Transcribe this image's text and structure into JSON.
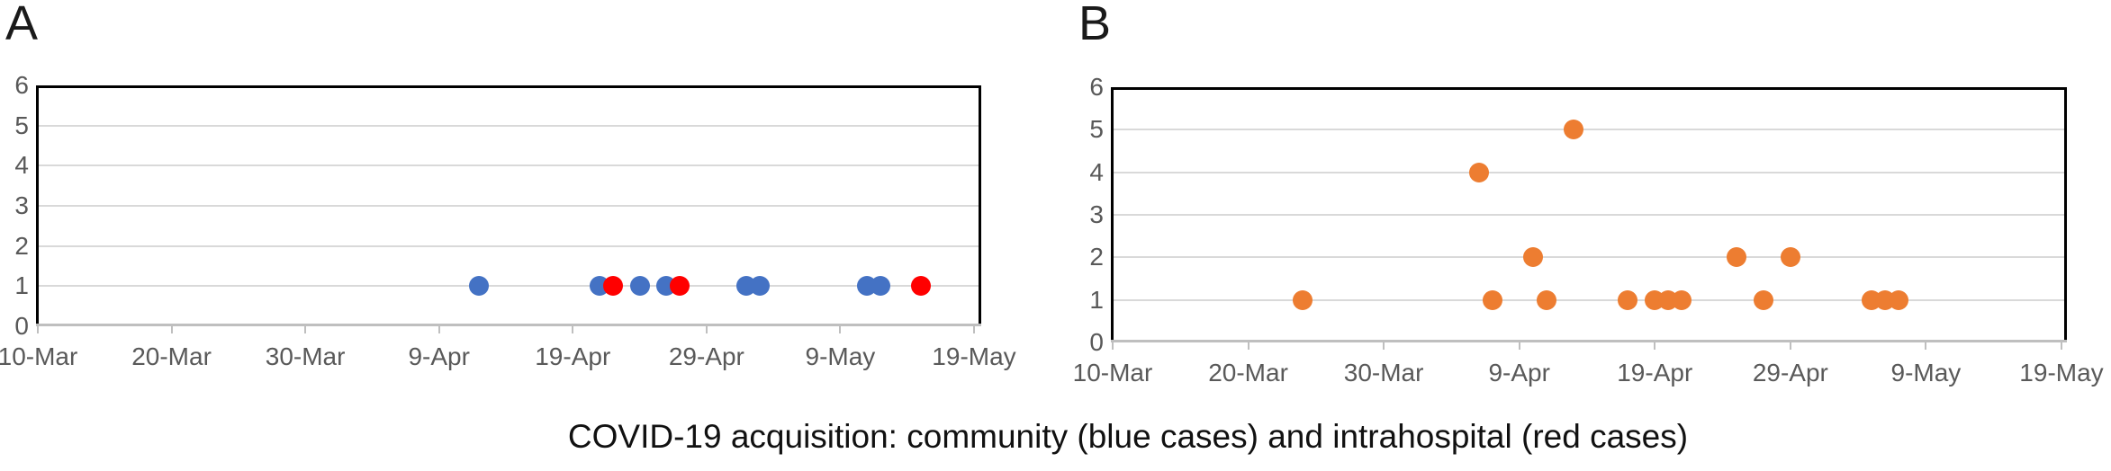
{
  "figure": {
    "caption": "COVID-19 acquisition: community (blue cases) and intrahospital (red cases)"
  },
  "panels": [
    {
      "label": "A"
    },
    {
      "label": "B"
    }
  ],
  "colors": {
    "community_blue": "#4472C4",
    "intrahospital_red": "#FF0000",
    "panel_b_orange": "#ED7D31",
    "gridline": "#D9D9D9",
    "axis_line": "#BFBFBF",
    "plot_border": "#000000",
    "tick_label": "#595959",
    "caption_text": "#111111"
  },
  "chart_data": [
    {
      "type": "scatter",
      "panel": "A",
      "title": "",
      "xlabel": "",
      "ylabel": "",
      "grid": true,
      "legend": "none",
      "x_axis": {
        "tick_labels": [
          "10-Mar",
          "20-Mar",
          "30-Mar",
          "9-Apr",
          "19-Apr",
          "29-Apr",
          "9-May",
          "19-May"
        ],
        "tick_interval_days": 10,
        "range": [
          "10-Mar",
          "19-May"
        ]
      },
      "y_axis": {
        "tick_labels": [
          "0",
          "1",
          "2",
          "3",
          "4",
          "5",
          "6"
        ],
        "min": 0,
        "max": 6
      },
      "series": [
        {
          "name": "community (blue cases)",
          "color": "#4472C4",
          "points": [
            {
              "date": "12-Apr",
              "y": 1
            },
            {
              "date": "21-Apr",
              "y": 1
            },
            {
              "date": "24-Apr",
              "y": 1
            },
            {
              "date": "26-Apr",
              "y": 1
            },
            {
              "date": "2-May",
              "y": 1
            },
            {
              "date": "3-May",
              "y": 1
            },
            {
              "date": "11-May",
              "y": 1
            },
            {
              "date": "12-May",
              "y": 1
            }
          ]
        },
        {
          "name": "intrahospital (red cases)",
          "color": "#FF0000",
          "points": [
            {
              "date": "22-Apr",
              "y": 1
            },
            {
              "date": "27-Apr",
              "y": 1
            },
            {
              "date": "15-May",
              "y": 1
            }
          ]
        }
      ]
    },
    {
      "type": "scatter",
      "panel": "B",
      "title": "",
      "xlabel": "",
      "ylabel": "",
      "grid": true,
      "legend": "none",
      "x_axis": {
        "tick_labels": [
          "10-Mar",
          "20-Mar",
          "30-Mar",
          "9-Apr",
          "19-Apr",
          "29-Apr",
          "9-May",
          "19-May"
        ],
        "tick_interval_days": 10,
        "range": [
          "10-Mar",
          "19-May"
        ]
      },
      "y_axis": {
        "tick_labels": [
          "0",
          "1",
          "2",
          "3",
          "4",
          "5",
          "6"
        ],
        "min": 0,
        "max": 6
      },
      "series": [
        {
          "name": "cases",
          "color": "#ED7D31",
          "points": [
            {
              "date": "24-Mar",
              "y": 1
            },
            {
              "date": "6-Apr",
              "y": 4
            },
            {
              "date": "7-Apr",
              "y": 1
            },
            {
              "date": "10-Apr",
              "y": 2
            },
            {
              "date": "11-Apr",
              "y": 1
            },
            {
              "date": "13-Apr",
              "y": 5
            },
            {
              "date": "17-Apr",
              "y": 1
            },
            {
              "date": "19-Apr",
              "y": 1
            },
            {
              "date": "20-Apr",
              "y": 1
            },
            {
              "date": "21-Apr",
              "y": 1
            },
            {
              "date": "25-Apr",
              "y": 2
            },
            {
              "date": "27-Apr",
              "y": 1
            },
            {
              "date": "29-Apr",
              "y": 2
            },
            {
              "date": "5-May",
              "y": 1
            },
            {
              "date": "6-May",
              "y": 1
            },
            {
              "date": "7-May",
              "y": 1
            }
          ]
        }
      ]
    }
  ]
}
